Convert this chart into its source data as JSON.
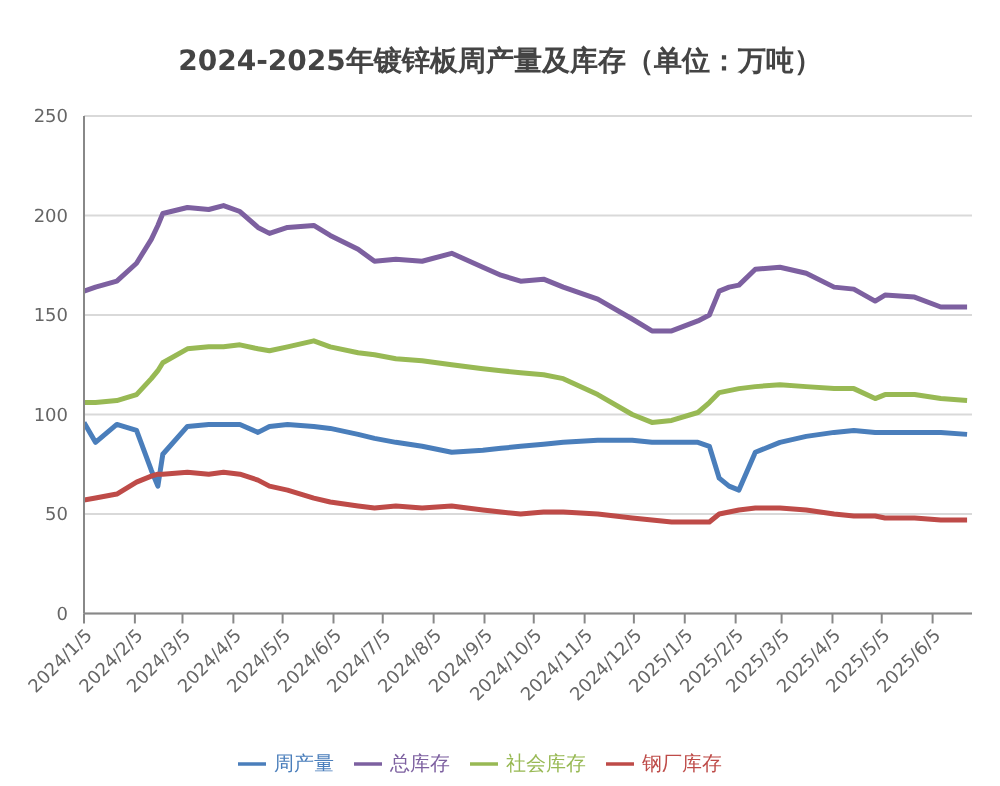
{
  "chart_data": {
    "type": "line",
    "title": "2024-2025年镀锌板周产量及库存（单位：万吨）",
    "x": [
      "2024-01-05",
      "2024-01-12",
      "2024-01-25",
      "2024-02-06",
      "2024-02-15",
      "2024-02-19",
      "2024-02-22",
      "2024-03-08",
      "2024-03-21",
      "2024-03-30",
      "2024-04-09",
      "2024-04-20",
      "2024-04-27",
      "2024-05-08",
      "2024-05-24",
      "2024-06-03",
      "2024-06-20",
      "2024-06-30",
      "2024-07-13",
      "2024-07-29",
      "2024-08-16",
      "2024-09-04",
      "2024-09-15",
      "2024-09-27",
      "2024-10-11",
      "2024-10-23",
      "2024-11-13",
      "2024-12-04",
      "2024-12-16",
      "2024-12-28",
      "2025-01-13",
      "2025-01-20",
      "2025-01-26",
      "2025-02-01",
      "2025-02-07",
      "2025-02-17",
      "2025-03-04",
      "2025-03-20",
      "2025-04-06",
      "2025-04-18",
      "2025-05-01",
      "2025-05-07",
      "2025-05-25",
      "2025-06-10",
      "2025-06-26"
    ],
    "series": [
      {
        "name": "周产量",
        "color": "#4a7ebb",
        "values": [
          96,
          86,
          95,
          92,
          72,
          64,
          80,
          94,
          95,
          95,
          95,
          91,
          94,
          95,
          94,
          93,
          90,
          88,
          86,
          84,
          81,
          82,
          83,
          84,
          85,
          86,
          87,
          87,
          86,
          86,
          86,
          84,
          68,
          64,
          62,
          81,
          86,
          89,
          91,
          92,
          91,
          91,
          91,
          91,
          90
        ]
      },
      {
        "name": "钢厂库存",
        "color": "#be4b48",
        "values": [
          57,
          58,
          60,
          66,
          69,
          70,
          70,
          71,
          70,
          71,
          70,
          67,
          64,
          62,
          58,
          56,
          54,
          53,
          54,
          53,
          54,
          52,
          51,
          50,
          51,
          51,
          50,
          48,
          47,
          46,
          46,
          46,
          50,
          51,
          52,
          53,
          53,
          52,
          50,
          49,
          49,
          48,
          48,
          47,
          47
        ]
      },
      {
        "name": "社会库存",
        "color": "#98b954",
        "values": [
          106,
          106,
          107,
          110,
          118,
          122,
          126,
          133,
          134,
          134,
          135,
          133,
          132,
          134,
          137,
          134,
          131,
          130,
          128,
          127,
          125,
          123,
          122,
          121,
          120,
          118,
          110,
          100,
          96,
          97,
          101,
          106,
          111,
          112,
          113,
          114,
          115,
          114,
          113,
          113,
          108,
          110,
          110,
          108,
          107
        ]
      },
      {
        "name": "总库存",
        "color": "#7d60a0",
        "values": [
          162,
          164,
          167,
          176,
          188,
          195,
          201,
          204,
          203,
          205,
          202,
          194,
          191,
          194,
          195,
          190,
          183,
          177,
          178,
          177,
          181,
          174,
          170,
          167,
          168,
          164,
          158,
          148,
          142,
          142,
          147,
          150,
          162,
          164,
          165,
          173,
          174,
          171,
          164,
          163,
          157,
          160,
          159,
          154,
          154
        ]
      }
    ],
    "xlim": [
      "2024-01-05",
      "2025-06-29"
    ],
    "xticks": [
      {
        "value": "2024-01-05",
        "label": "2024/1/5"
      },
      {
        "value": "2024-02-05",
        "label": "2024/2/5"
      },
      {
        "value": "2024-03-05",
        "label": "2024/3/5"
      },
      {
        "value": "2024-04-05",
        "label": "2024/4/5"
      },
      {
        "value": "2024-05-05",
        "label": "2024/5/5"
      },
      {
        "value": "2024-06-05",
        "label": "2024/6/5"
      },
      {
        "value": "2024-07-05",
        "label": "2024/7/5"
      },
      {
        "value": "2024-08-05",
        "label": "2024/8/5"
      },
      {
        "value": "2024-09-05",
        "label": "2024/9/5"
      },
      {
        "value": "2024-10-05",
        "label": "2024/10/5"
      },
      {
        "value": "2024-11-05",
        "label": "2024/11/5"
      },
      {
        "value": "2024-12-05",
        "label": "2024/12/5"
      },
      {
        "value": "2025-01-05",
        "label": "2025/1/5"
      },
      {
        "value": "2025-02-05",
        "label": "2025/2/5"
      },
      {
        "value": "2025-03-05",
        "label": "2025/3/5"
      },
      {
        "value": "2025-04-05",
        "label": "2025/4/5"
      },
      {
        "value": "2025-05-05",
        "label": "2025/5/5"
      },
      {
        "value": "2025-06-05",
        "label": "2025/6/5"
      }
    ],
    "ylim": [
      0,
      250
    ],
    "yticks": [
      0,
      50,
      100,
      150,
      200,
      250
    ],
    "grid": "y",
    "legend": "bottom",
    "marker": "none",
    "line_style": "solid"
  }
}
